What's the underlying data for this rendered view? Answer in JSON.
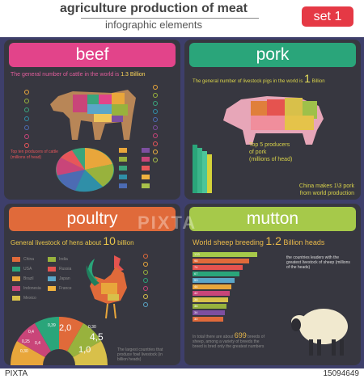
{
  "header": {
    "title": "agriculture  production of meat",
    "subtitle": "infographic elements",
    "set_label": "set 1"
  },
  "beef": {
    "title": "beef",
    "stat_prefix": "The general number of cattle in the world is",
    "stat_value": "1.3 Billion",
    "chart_caption_1": "Top ten producers of cattle",
    "chart_caption_2": "(millions of head)",
    "colors": [
      "#e9a63b",
      "#98b23d",
      "#3aa57c",
      "#2f8fa8",
      "#4c6bb3",
      "#7d4fa0",
      "#c94579",
      "#e8565a",
      "#f0b23f",
      "#a8c14a"
    ]
  },
  "pork": {
    "title": "pork",
    "stat_prefix": "The general number of livestock pigs in the world is",
    "stat_value": "1",
    "stat_unit": "Billion",
    "top_line1": "Top 5 producers",
    "top_line2": "of pork",
    "top_line3": "(millions of head)",
    "china_line1": "China makes 1\\3 pork",
    "china_line2": "from world production"
  },
  "poultry": {
    "title": "poultry",
    "stat_prefix": "General livestock of hens about",
    "stat_value": "10",
    "stat_unit": "billion",
    "legend": [
      "China",
      "USA",
      "Brazil",
      "Indonesia",
      "Mexico",
      "India",
      "Russia",
      "Japan",
      "France"
    ],
    "fan_values": [
      "2,0",
      "1,0",
      "4,5",
      "0,30",
      "0,39",
      "0,4",
      "0,25",
      "0,30",
      "0,4"
    ],
    "footnote": "The largest countries that produce fowl livestock (in billion heads)"
  },
  "mutton": {
    "title": "mutton",
    "stat_prefix": "World sheep breeding",
    "stat_value": "1.2",
    "stat_unit": "Billion heads",
    "side_note": "the countries leaders with the greatest livestock of sheep (millions of the heads)",
    "bar_values": [
      "133",
      "98",
      "74",
      "67",
      "53",
      "44",
      "42",
      "38",
      "36",
      "34",
      "30"
    ],
    "bottom_prefix": "In total there are about",
    "bottom_value": "699",
    "bottom_rest": "breeds of sheep, among a variety of breeds the breed is bred only the greatest numbers"
  },
  "footer": {
    "left": "PIXTA",
    "right": "15094649"
  },
  "watermark": "PIXTA"
}
